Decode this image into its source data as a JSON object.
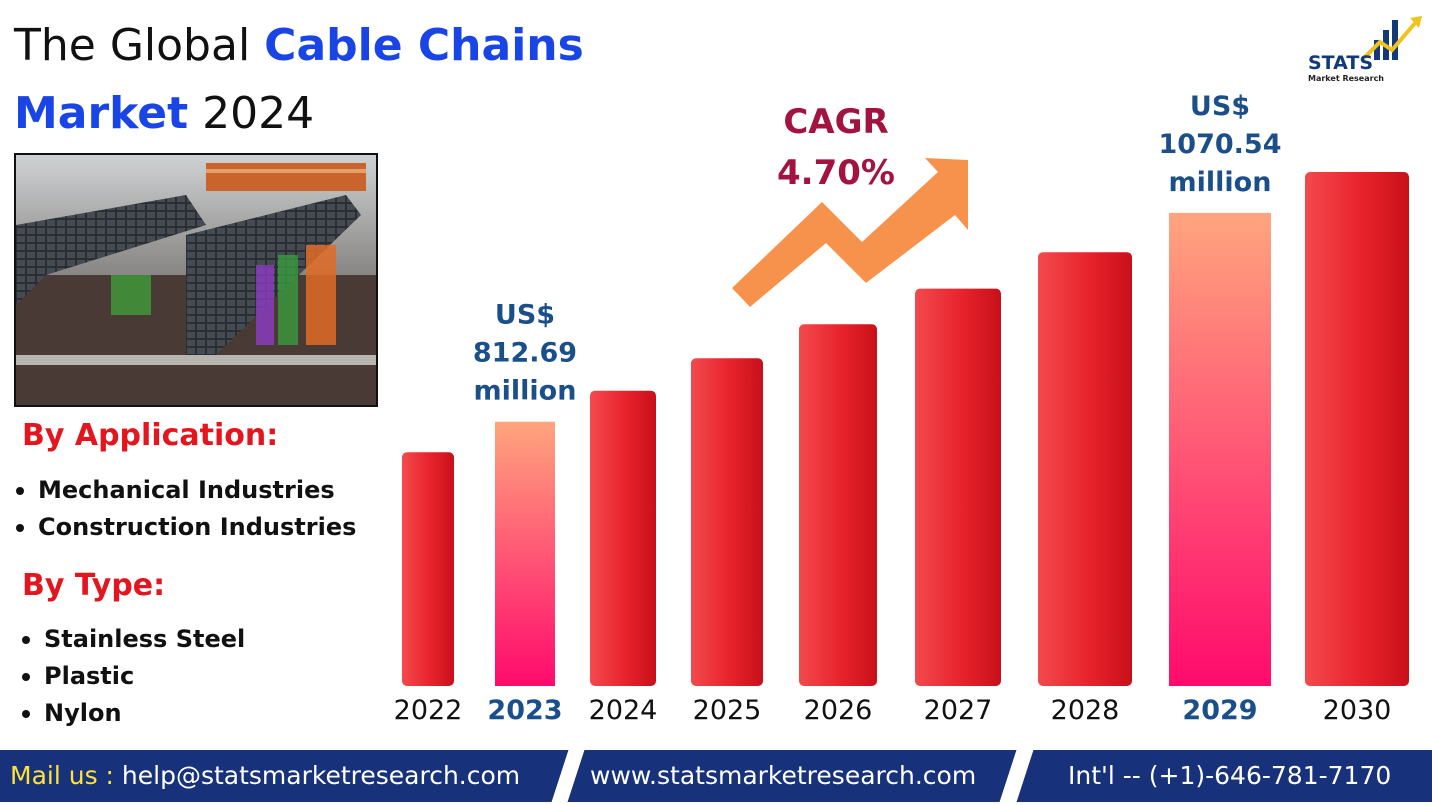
{
  "title": {
    "line1_normal": "The Global ",
    "line1_bold": "Cable Chains",
    "line2_bold": "Market",
    "line2_normal": " 2024"
  },
  "logo": {
    "text": "STATS",
    "subtext": "Market Research"
  },
  "segments": {
    "application_heading": "By Application:",
    "application_items": [
      "Mechanical Industries",
      "Construction Industries"
    ],
    "type_heading": "By Type:",
    "type_items": [
      "Stainless Steel",
      "Plastic",
      "Nylon"
    ]
  },
  "chart_data": {
    "type": "bar",
    "categories": [
      "2022",
      "2023",
      "2024",
      "2025",
      "2026",
      "2027",
      "2028",
      "2029",
      "2030"
    ],
    "values": [
      775,
      812.69,
      851,
      891,
      933,
      977,
      1022,
      1070.54,
      1121
    ],
    "highlighted": [
      "2023",
      "2029"
    ],
    "annotations": [
      {
        "year": "2023",
        "lines": [
          "US$",
          "812.69",
          "million"
        ]
      },
      {
        "year": "2029",
        "lines": [
          "US$",
          "1070.54",
          "million"
        ]
      }
    ],
    "cagr": {
      "label": "CAGR",
      "value": "4.70%"
    },
    "colors": {
      "bar": "#e8222b",
      "bar_highlight_top": "#ffa57e",
      "bar_highlight_bottom": "#ff0a6c",
      "arrow": "#f7924d"
    }
  },
  "footer": {
    "mail_label": "Mail us : ",
    "email": "help@statsmarketresearch.com",
    "website": "www.statsmarketresearch.com",
    "phone": "Int'l -- (+1)-646-781-7170"
  }
}
